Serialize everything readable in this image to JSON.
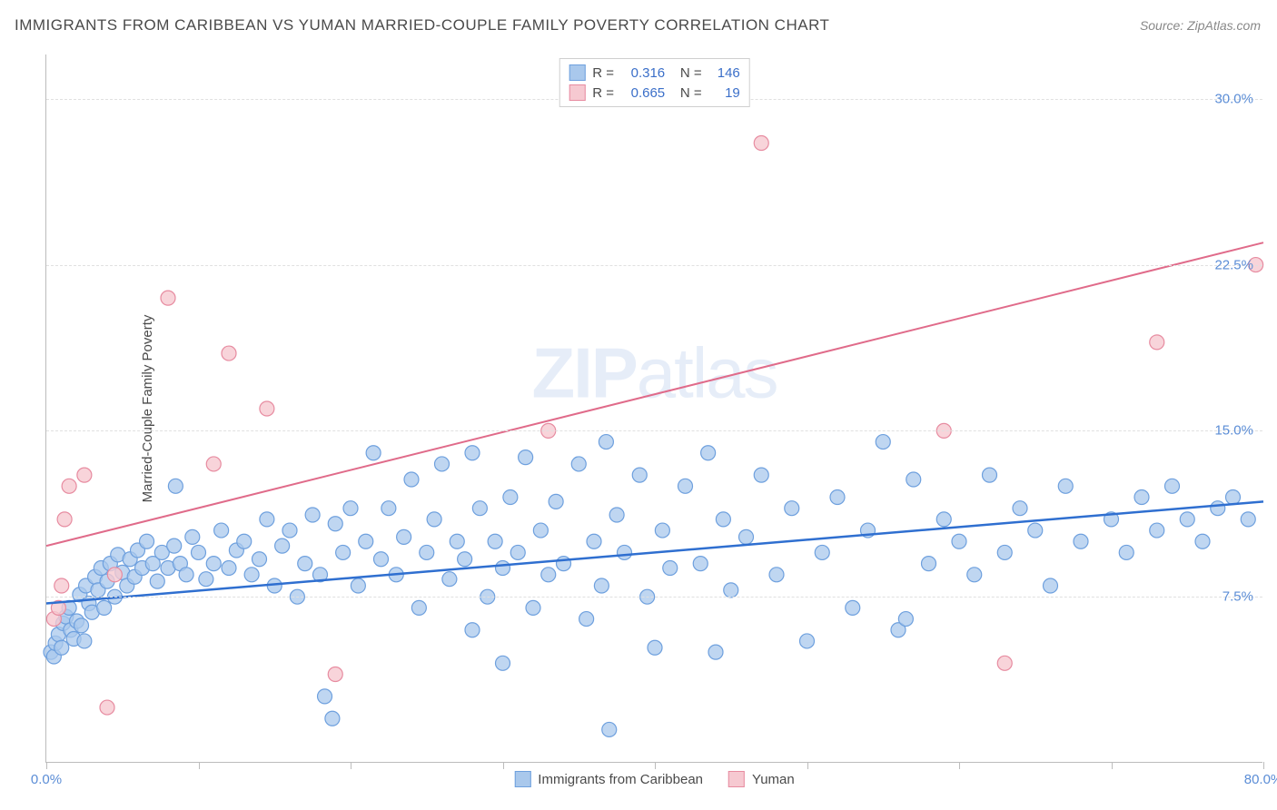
{
  "title": "IMMIGRANTS FROM CARIBBEAN VS YUMAN MARRIED-COUPLE FAMILY POVERTY CORRELATION CHART",
  "source": "Source: ZipAtlas.com",
  "watermark": "ZIPatlas",
  "ylabel": "Married-Couple Family Poverty",
  "chart": {
    "type": "scatter",
    "xlim": [
      0,
      80
    ],
    "ylim": [
      0,
      32
    ],
    "xticks": [
      0,
      10,
      20,
      30,
      40,
      50,
      60,
      70,
      80
    ],
    "xtick_labels": {
      "0": "0.0%",
      "80": "80.0%"
    },
    "yticks": [
      7.5,
      15.0,
      22.5,
      30.0
    ],
    "ytick_labels": [
      "7.5%",
      "15.0%",
      "22.5%",
      "30.0%"
    ],
    "grid_color": "#e0e0e0",
    "axis_color": "#bcbcbc",
    "background_color": "#ffffff",
    "tick_label_color": "#5b8dd6",
    "series": [
      {
        "name": "Immigrants from Caribbean",
        "marker_fill": "#a9c8ec",
        "marker_stroke": "#6ea0de",
        "marker_radius": 8,
        "marker_opacity": 0.75,
        "line_color": "#2f6fd0",
        "line_width": 2.5,
        "line": {
          "x1": 0,
          "y1": 7.2,
          "x2": 80,
          "y2": 11.8
        },
        "R": "0.316",
        "N": "146",
        "points": [
          [
            0.3,
            5.0
          ],
          [
            0.5,
            4.8
          ],
          [
            0.6,
            5.4
          ],
          [
            0.8,
            5.8
          ],
          [
            1.0,
            5.2
          ],
          [
            1.1,
            6.3
          ],
          [
            1.3,
            6.6
          ],
          [
            1.5,
            7.0
          ],
          [
            1.6,
            6.0
          ],
          [
            1.8,
            5.6
          ],
          [
            2.0,
            6.4
          ],
          [
            2.2,
            7.6
          ],
          [
            2.3,
            6.2
          ],
          [
            2.5,
            5.5
          ],
          [
            2.6,
            8.0
          ],
          [
            2.8,
            7.2
          ],
          [
            3.0,
            6.8
          ],
          [
            3.2,
            8.4
          ],
          [
            3.4,
            7.8
          ],
          [
            3.6,
            8.8
          ],
          [
            3.8,
            7.0
          ],
          [
            4.0,
            8.2
          ],
          [
            4.2,
            9.0
          ],
          [
            4.5,
            7.5
          ],
          [
            4.7,
            9.4
          ],
          [
            5.0,
            8.6
          ],
          [
            5.3,
            8.0
          ],
          [
            5.5,
            9.2
          ],
          [
            5.8,
            8.4
          ],
          [
            6.0,
            9.6
          ],
          [
            6.3,
            8.8
          ],
          [
            6.6,
            10.0
          ],
          [
            7.0,
            9.0
          ],
          [
            7.3,
            8.2
          ],
          [
            7.6,
            9.5
          ],
          [
            8.0,
            8.8
          ],
          [
            8.4,
            9.8
          ],
          [
            8.8,
            9.0
          ],
          [
            8.5,
            12.5
          ],
          [
            9.2,
            8.5
          ],
          [
            9.6,
            10.2
          ],
          [
            10.0,
            9.5
          ],
          [
            10.5,
            8.3
          ],
          [
            11.0,
            9.0
          ],
          [
            11.5,
            10.5
          ],
          [
            12.0,
            8.8
          ],
          [
            12.5,
            9.6
          ],
          [
            13.0,
            10.0
          ],
          [
            13.5,
            8.5
          ],
          [
            14.0,
            9.2
          ],
          [
            14.5,
            11.0
          ],
          [
            15.0,
            8.0
          ],
          [
            15.5,
            9.8
          ],
          [
            16.0,
            10.5
          ],
          [
            16.5,
            7.5
          ],
          [
            17.0,
            9.0
          ],
          [
            17.5,
            11.2
          ],
          [
            18.0,
            8.5
          ],
          [
            18.3,
            3.0
          ],
          [
            18.8,
            2.0
          ],
          [
            19.0,
            10.8
          ],
          [
            19.5,
            9.5
          ],
          [
            20.0,
            11.5
          ],
          [
            20.5,
            8.0
          ],
          [
            21.0,
            10.0
          ],
          [
            21.5,
            14.0
          ],
          [
            22.0,
            9.2
          ],
          [
            22.5,
            11.5
          ],
          [
            23.0,
            8.5
          ],
          [
            23.5,
            10.2
          ],
          [
            24.0,
            12.8
          ],
          [
            24.5,
            7.0
          ],
          [
            25.0,
            9.5
          ],
          [
            25.5,
            11.0
          ],
          [
            26.0,
            13.5
          ],
          [
            26.5,
            8.3
          ],
          [
            27.0,
            10.0
          ],
          [
            27.5,
            9.2
          ],
          [
            28.0,
            14.0
          ],
          [
            28.5,
            11.5
          ],
          [
            29.0,
            7.5
          ],
          [
            28.0,
            6.0
          ],
          [
            29.5,
            10.0
          ],
          [
            30.0,
            8.8
          ],
          [
            30.5,
            12.0
          ],
          [
            30.0,
            4.5
          ],
          [
            31.0,
            9.5
          ],
          [
            31.5,
            13.8
          ],
          [
            32.0,
            7.0
          ],
          [
            32.5,
            10.5
          ],
          [
            33.0,
            8.5
          ],
          [
            33.5,
            11.8
          ],
          [
            34.0,
            9.0
          ],
          [
            35.0,
            13.5
          ],
          [
            35.5,
            6.5
          ],
          [
            36.0,
            10.0
          ],
          [
            36.5,
            8.0
          ],
          [
            36.8,
            14.5
          ],
          [
            37.0,
            1.5
          ],
          [
            37.5,
            11.2
          ],
          [
            38.0,
            9.5
          ],
          [
            39.0,
            13.0
          ],
          [
            39.5,
            7.5
          ],
          [
            40.0,
            5.2
          ],
          [
            40.5,
            10.5
          ],
          [
            41.0,
            8.8
          ],
          [
            42.0,
            12.5
          ],
          [
            43.0,
            9.0
          ],
          [
            43.5,
            14.0
          ],
          [
            44.0,
            5.0
          ],
          [
            44.5,
            11.0
          ],
          [
            45.0,
            7.8
          ],
          [
            46.0,
            10.2
          ],
          [
            47.0,
            13.0
          ],
          [
            48.0,
            8.5
          ],
          [
            49.0,
            11.5
          ],
          [
            50.0,
            5.5
          ],
          [
            51.0,
            9.5
          ],
          [
            52.0,
            12.0
          ],
          [
            53.0,
            7.0
          ],
          [
            54.0,
            10.5
          ],
          [
            55.0,
            14.5
          ],
          [
            56.0,
            6.0
          ],
          [
            56.5,
            6.5
          ],
          [
            57.0,
            12.8
          ],
          [
            58.0,
            9.0
          ],
          [
            59.0,
            11.0
          ],
          [
            60.0,
            10.0
          ],
          [
            61.0,
            8.5
          ],
          [
            62.0,
            13.0
          ],
          [
            63.0,
            9.5
          ],
          [
            64.0,
            11.5
          ],
          [
            65.0,
            10.5
          ],
          [
            66.0,
            8.0
          ],
          [
            67.0,
            12.5
          ],
          [
            68.0,
            10.0
          ],
          [
            70.0,
            11.0
          ],
          [
            71.0,
            9.5
          ],
          [
            72.0,
            12.0
          ],
          [
            73.0,
            10.5
          ],
          [
            74.0,
            12.5
          ],
          [
            75.0,
            11.0
          ],
          [
            76.0,
            10.0
          ],
          [
            77.0,
            11.5
          ],
          [
            78.0,
            12.0
          ],
          [
            79.0,
            11.0
          ]
        ]
      },
      {
        "name": "Yuman",
        "marker_fill": "#f6c9d1",
        "marker_stroke": "#e78ba0",
        "marker_radius": 8,
        "marker_opacity": 0.8,
        "line_color": "#e06b8a",
        "line_width": 2,
        "line": {
          "x1": 0,
          "y1": 9.8,
          "x2": 80,
          "y2": 23.5
        },
        "R": "0.665",
        "N": "19",
        "points": [
          [
            0.5,
            6.5
          ],
          [
            0.8,
            7.0
          ],
          [
            1.0,
            8.0
          ],
          [
            1.2,
            11.0
          ],
          [
            1.5,
            12.5
          ],
          [
            2.5,
            13.0
          ],
          [
            4.0,
            2.5
          ],
          [
            4.5,
            8.5
          ],
          [
            8.0,
            21.0
          ],
          [
            11.0,
            13.5
          ],
          [
            12.0,
            18.5
          ],
          [
            14.5,
            16.0
          ],
          [
            19.0,
            4.0
          ],
          [
            33.0,
            15.0
          ],
          [
            47.0,
            28.0
          ],
          [
            59.0,
            15.0
          ],
          [
            63.0,
            4.5
          ],
          [
            73.0,
            19.0
          ],
          [
            79.5,
            22.5
          ]
        ]
      }
    ]
  },
  "legend_top": {
    "r_label": "R =",
    "n_label": "N ="
  },
  "legend_bottom": [
    {
      "label": "Immigrants from Caribbean",
      "fill": "#a9c8ec",
      "stroke": "#6ea0de"
    },
    {
      "label": "Yuman",
      "fill": "#f6c9d1",
      "stroke": "#e78ba0"
    }
  ]
}
